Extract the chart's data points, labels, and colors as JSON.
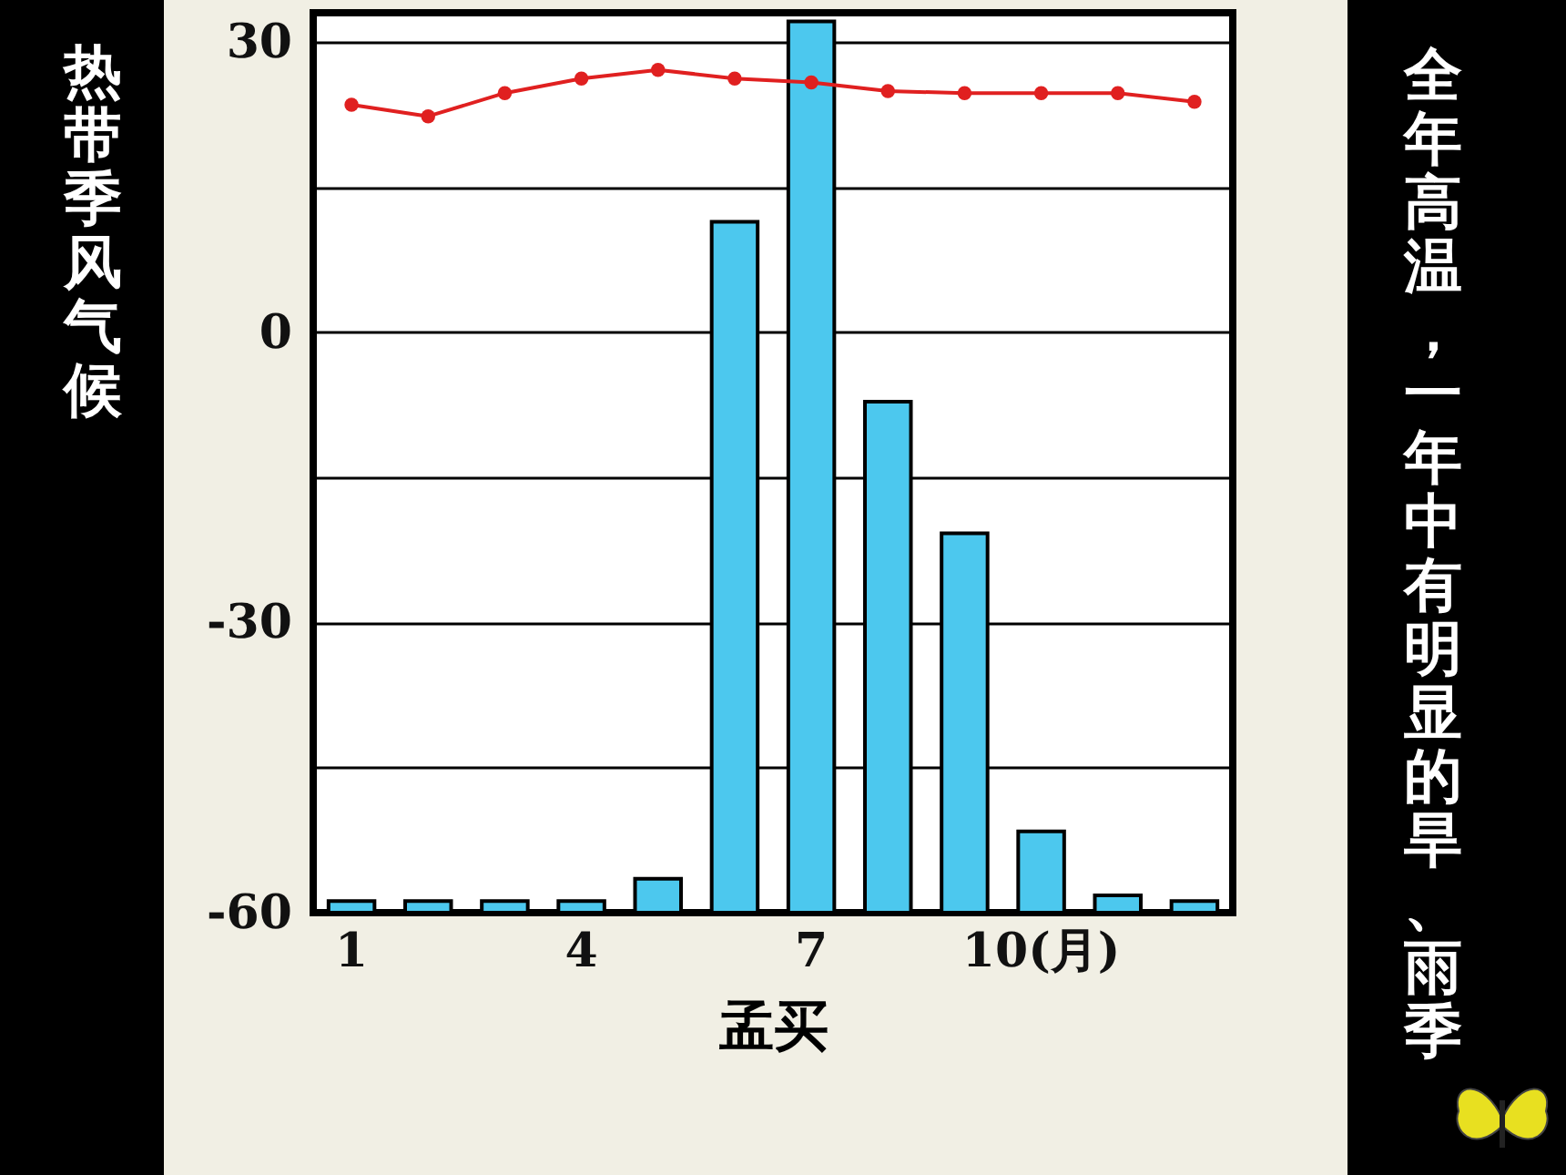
{
  "chart_data": {
    "type": "bar",
    "categories": [
      "1",
      null,
      null,
      "4",
      null,
      null,
      "7",
      null,
      null,
      "10(月)",
      null,
      null
    ],
    "xlabel": "孟买",
    "annotations": [
      "热带季风气候",
      "全年高温，一年中有明显的旱、雨季"
    ],
    "series": [
      {
        "color": "#4cc8ee",
        "base": [
          -60,
          -60,
          -60,
          -60,
          -60,
          -60,
          -60,
          -60,
          -60,
          -60,
          -60,
          -60
        ],
        "values": [
          1.2,
          1.2,
          1.2,
          1.2,
          3.5,
          71.4,
          92.1,
          52.8,
          39.2,
          8.4,
          1.8,
          1.2
        ]
      },
      {
        "type": "line",
        "color": "#e02020",
        "marker": "circle",
        "values": [
          23.5,
          22.3,
          24.7,
          26.2,
          27.1,
          26.2,
          25.8,
          24.9,
          24.7,
          24.7,
          24.7,
          23.8
        ]
      }
    ],
    "ylim": [
      -60,
      33
    ],
    "yticks": [
      30,
      {
        "value": 15,
        "label": null
      },
      0,
      {
        "value": -15,
        "label": null
      },
      -30,
      {
        "value": -45,
        "label": null
      },
      -60
    ],
    "grid": "y"
  }
}
